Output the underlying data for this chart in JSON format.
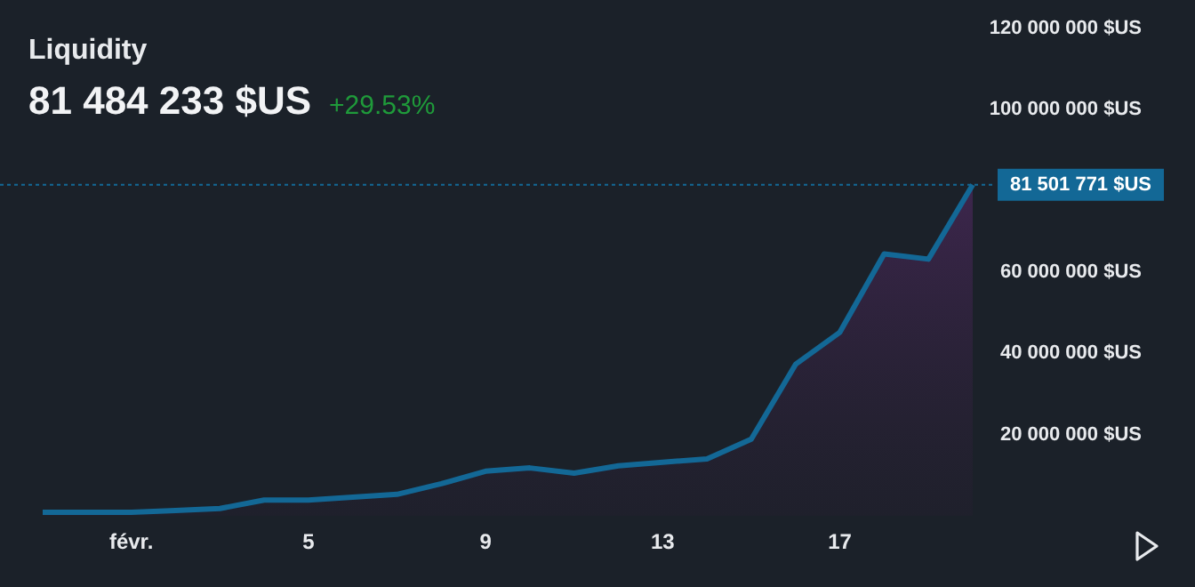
{
  "chart_data": {
    "type": "area",
    "title": "Liquidity",
    "subtitle": "81 484 233 $US",
    "annotations": [
      "+29.53%"
    ],
    "categories": [
      null,
      null,
      "févr.",
      null,
      null,
      null,
      "5",
      null,
      null,
      null,
      "9",
      null,
      null,
      null,
      "13",
      null,
      null,
      null,
      "17",
      null,
      null,
      null
    ],
    "series": [
      {
        "color": "#136896",
        "values": [
          900000,
          900000,
          900000,
          1300000,
          1800000,
          3900000,
          3900000,
          4600000,
          5300000,
          7900000,
          11000000,
          11800000,
          10500000,
          12300000,
          13200000,
          14000000,
          18900000,
          37300000,
          45200000,
          64500000,
          63200000,
          81501771
        ]
      }
    ],
    "ylim": [
      0,
      120000000
    ],
    "yticks": [
      {
        "value": 20000000,
        "label": "20 000 000 $US"
      },
      {
        "value": 40000000,
        "label": "40 000 000 $US"
      },
      {
        "value": 60000000,
        "label": "60 000 000 $US"
      },
      {
        "value": 100000000,
        "label": "100 000 000 $US"
      },
      {
        "value": 120000000,
        "label": "120 000 000 $US"
      }
    ],
    "ref_lines": [
      {
        "axis": "y",
        "value": 81501771,
        "label": "81 501 771 $US",
        "color": "#136896",
        "line_style": "dotted"
      }
    ],
    "grid": false,
    "legend": false,
    "marker": "none",
    "line_style": "solid"
  }
}
